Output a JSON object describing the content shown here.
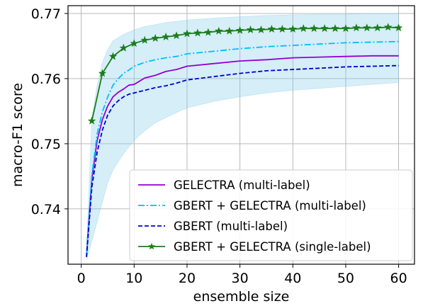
{
  "chart_data": {
    "type": "line",
    "title": "",
    "xlabel": "ensemble size",
    "ylabel": "macro-F1 score",
    "xlim": [
      -2.5,
      63
    ],
    "ylim": [
      0.7315,
      0.7712
    ],
    "xticks": [
      0,
      10,
      20,
      30,
      40,
      50,
      60
    ],
    "yticks": [
      0.74,
      0.75,
      0.76,
      0.77
    ],
    "ytick_labels": [
      "0.74",
      "0.75",
      "0.76",
      "0.77"
    ],
    "grid": true,
    "legend_position": "lower right",
    "band": {
      "series": "GBERT + GELECTRA (multi-label)",
      "color": "#87ceeb",
      "x": [
        1,
        2,
        3,
        4,
        5,
        6,
        8,
        10,
        12,
        14,
        16,
        18,
        20,
        25,
        30,
        35,
        40,
        45,
        50,
        55,
        60
      ],
      "lower": [
        0.7322,
        0.735,
        0.738,
        0.741,
        0.744,
        0.746,
        0.7485,
        0.7505,
        0.752,
        0.7532,
        0.754,
        0.7548,
        0.7555,
        0.7565,
        0.7572,
        0.7578,
        0.7582,
        0.7585,
        0.7588,
        0.7591,
        0.7594
      ],
      "upper": [
        0.7335,
        0.754,
        0.759,
        0.7625,
        0.7645,
        0.7658,
        0.7668,
        0.7675,
        0.768,
        0.7683,
        0.7686,
        0.7688,
        0.769,
        0.7693,
        0.7695,
        0.7697,
        0.7698,
        0.7699,
        0.7699,
        0.77,
        0.77
      ]
    },
    "series": [
      {
        "name": "GELECTRA (multi-label)",
        "color": "#9400d3",
        "style": "solid",
        "x": [
          1,
          2,
          3,
          4,
          5,
          6,
          7,
          8,
          9,
          10,
          12,
          14,
          16,
          18,
          20,
          25,
          30,
          35,
          40,
          45,
          50,
          55,
          60
        ],
        "values": [
          0.7328,
          0.7446,
          0.7505,
          0.7537,
          0.7558,
          0.7572,
          0.7579,
          0.7584,
          0.759,
          0.7591,
          0.7601,
          0.7605,
          0.7611,
          0.7614,
          0.7619,
          0.7623,
          0.7627,
          0.7629,
          0.7632,
          0.7633,
          0.7634,
          0.7635,
          0.7635
        ]
      },
      {
        "name": "GBERT + GELECTRA (multi-label)",
        "color": "#00bfff",
        "style": "dashdot",
        "x": [
          1,
          2,
          3,
          4,
          5,
          6,
          7,
          8,
          9,
          10,
          12,
          14,
          16,
          18,
          20,
          25,
          30,
          35,
          40,
          45,
          50,
          55,
          60
        ],
        "values": [
          0.733,
          0.7451,
          0.7515,
          0.7549,
          0.7572,
          0.759,
          0.76,
          0.7608,
          0.7613,
          0.7619,
          0.7625,
          0.7629,
          0.7632,
          0.7634,
          0.7638,
          0.7642,
          0.7646,
          0.7649,
          0.7651,
          0.7653,
          0.7655,
          0.7656,
          0.7657
        ]
      },
      {
        "name": "GBERT (multi-label)",
        "color": "#0000cd",
        "style": "dashed",
        "x": [
          1,
          2,
          3,
          4,
          5,
          6,
          7,
          8,
          9,
          10,
          12,
          14,
          16,
          18,
          20,
          25,
          30,
          35,
          40,
          45,
          50,
          55,
          60
        ],
        "values": [
          0.7326,
          0.7433,
          0.7487,
          0.7521,
          0.7544,
          0.7558,
          0.7566,
          0.7572,
          0.7576,
          0.7578,
          0.7582,
          0.7586,
          0.7589,
          0.7593,
          0.7598,
          0.7603,
          0.7608,
          0.7612,
          0.7614,
          0.7616,
          0.7618,
          0.7619,
          0.762
        ]
      },
      {
        "name": "GBERT + GELECTRA (single-label)",
        "color": "#1b7d1b",
        "style": "solid",
        "marker": "star",
        "x": [
          2,
          4,
          6,
          8,
          10,
          12,
          14,
          16,
          18,
          20,
          22,
          24,
          26,
          28,
          30,
          32,
          34,
          36,
          38,
          40,
          42,
          44,
          46,
          48,
          50,
          52,
          54,
          56,
          58,
          60
        ],
        "values": [
          0.7535,
          0.7608,
          0.7634,
          0.7647,
          0.7654,
          0.7659,
          0.7662,
          0.7664,
          0.7666,
          0.7669,
          0.767,
          0.7671,
          0.7673,
          0.7673,
          0.7674,
          0.7675,
          0.7675,
          0.7676,
          0.7676,
          0.7676,
          0.7677,
          0.7677,
          0.7677,
          0.7677,
          0.7677,
          0.7678,
          0.7678,
          0.7678,
          0.7679,
          0.7678
        ]
      }
    ]
  }
}
